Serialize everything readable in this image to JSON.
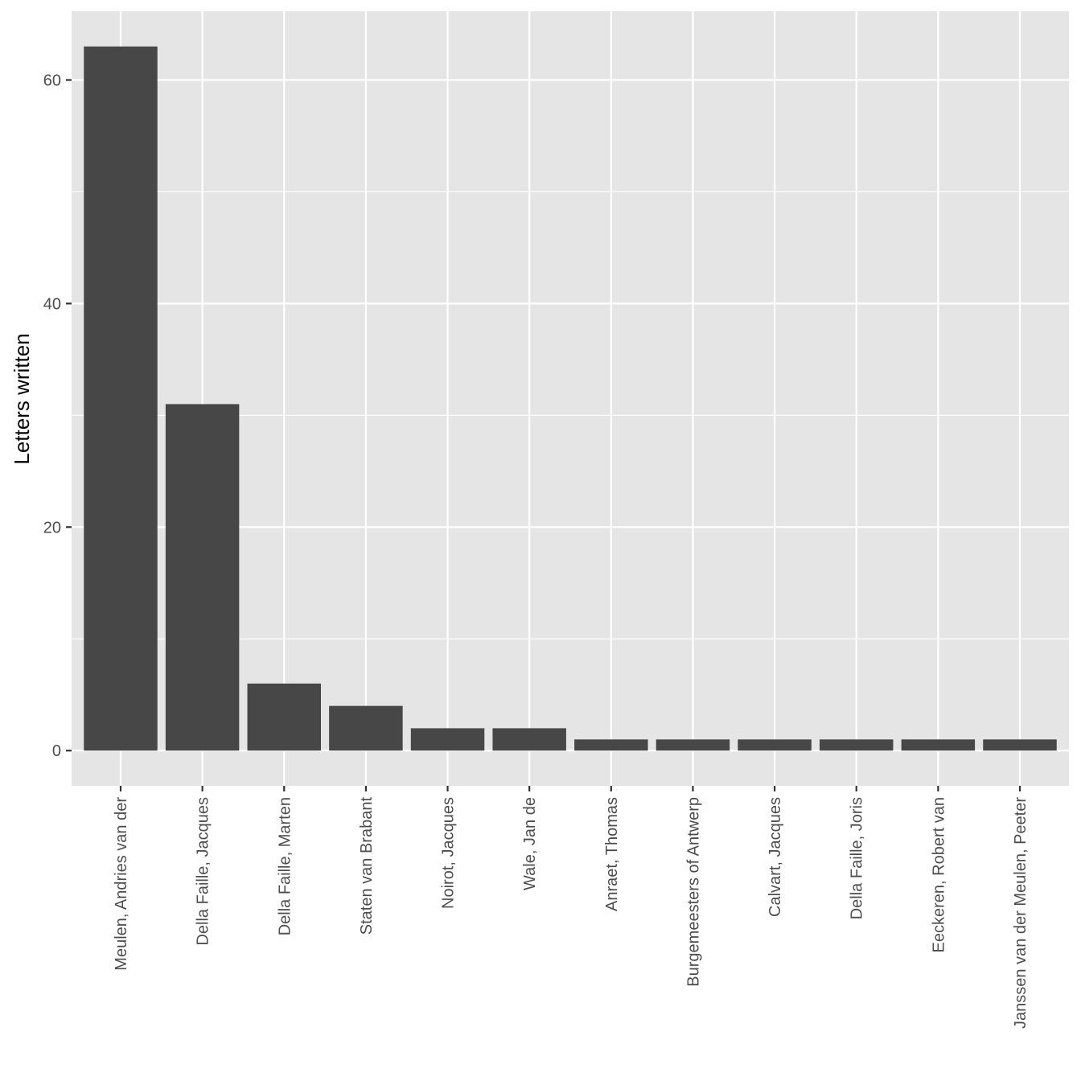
{
  "chart_data": {
    "type": "bar",
    "title": "",
    "xlabel": "",
    "ylabel": "Letters written",
    "categories": [
      "Meulen, Andries van der",
      "Della Faille, Jacques",
      "Della Faille, Marten",
      "Staten van Brabant",
      "Noirot, Jacques",
      "Wale, Jan de",
      "Anraet, Thomas",
      "Burgemeesters of Antwerp",
      "Calvart, Jacques",
      "Della Faille, Joris",
      "Eeckeren, Robert van",
      "Janssen van der Meulen, Peeter"
    ],
    "values": [
      63,
      31,
      6,
      4,
      2,
      2,
      1,
      1,
      1,
      1,
      1,
      1
    ],
    "ylim": [
      -3.15,
      66.15
    ],
    "yticks": [
      0,
      20,
      40,
      60
    ],
    "grid": true,
    "legend": "none",
    "colors": {
      "bar": "#474747",
      "panel": "#e5e5e5",
      "grid": "#ffffff"
    }
  }
}
